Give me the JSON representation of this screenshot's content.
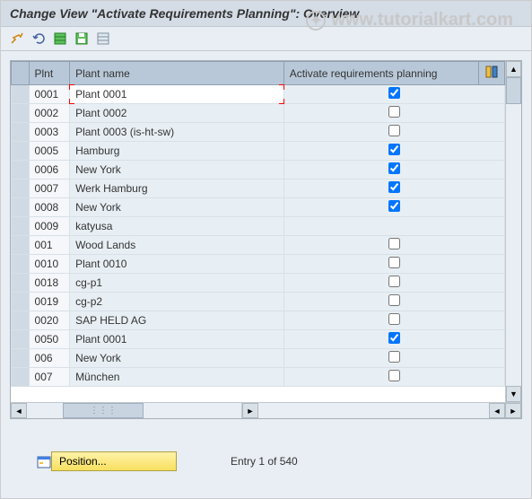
{
  "title": "Change View \"Activate Requirements Planning\": Overview",
  "watermark": "www.tutorialkart.com",
  "toolbar": {
    "btn1_name": "toggle-icon",
    "btn2_name": "undo-icon",
    "btn3_name": "select-all-icon",
    "btn4_name": "deselect-all-icon",
    "btn5_name": "copy-icon"
  },
  "table": {
    "columns": {
      "plnt": "Plnt",
      "plant_name": "Plant name",
      "activate": "Activate requirements planning"
    },
    "rows": [
      {
        "plnt": "0001",
        "name": "Plant 0001",
        "checked": true,
        "selected": true
      },
      {
        "plnt": "0002",
        "name": "Plant 0002",
        "checked": false,
        "selected": false
      },
      {
        "plnt": "0003",
        "name": "Plant 0003 (is-ht-sw)",
        "checked": false,
        "selected": false
      },
      {
        "plnt": "0005",
        "name": "Hamburg",
        "checked": true,
        "selected": false
      },
      {
        "plnt": "0006",
        "name": "New York",
        "checked": true,
        "selected": false
      },
      {
        "plnt": "0007",
        "name": "Werk Hamburg",
        "checked": true,
        "selected": false
      },
      {
        "plnt": "0008",
        "name": "New York",
        "checked": true,
        "selected": false
      },
      {
        "plnt": "0009",
        "name": "katyusa",
        "checked": null,
        "selected": false
      },
      {
        "plnt": "001",
        "name": "Wood Lands",
        "checked": false,
        "selected": false
      },
      {
        "plnt": "0010",
        "name": "Plant 0010",
        "checked": false,
        "selected": false
      },
      {
        "plnt": "0018",
        "name": "cg-p1",
        "checked": false,
        "selected": false
      },
      {
        "plnt": "0019",
        "name": "cg-p2",
        "checked": false,
        "selected": false
      },
      {
        "plnt": "0020",
        "name": "SAP HELD AG",
        "checked": false,
        "selected": false
      },
      {
        "plnt": "0050",
        "name": "Plant 0001",
        "checked": true,
        "selected": false
      },
      {
        "plnt": "006",
        "name": "New York",
        "checked": false,
        "selected": false
      },
      {
        "plnt": "007",
        "name": "München",
        "checked": false,
        "selected": false
      }
    ]
  },
  "footer": {
    "position_label": "Position...",
    "entry_text": "Entry 1 of 540"
  },
  "colors": {
    "header_bg": "#b8c8d8",
    "row_bg": "#e8eff4",
    "plnt_bg": "#f5f7fa",
    "selector_bg": "#d0dae4",
    "panel_bg": "#e8eef4",
    "title_bg": "#d4dce6",
    "selection_border": "#ff0000",
    "position_btn_bg": "#f8e060"
  }
}
